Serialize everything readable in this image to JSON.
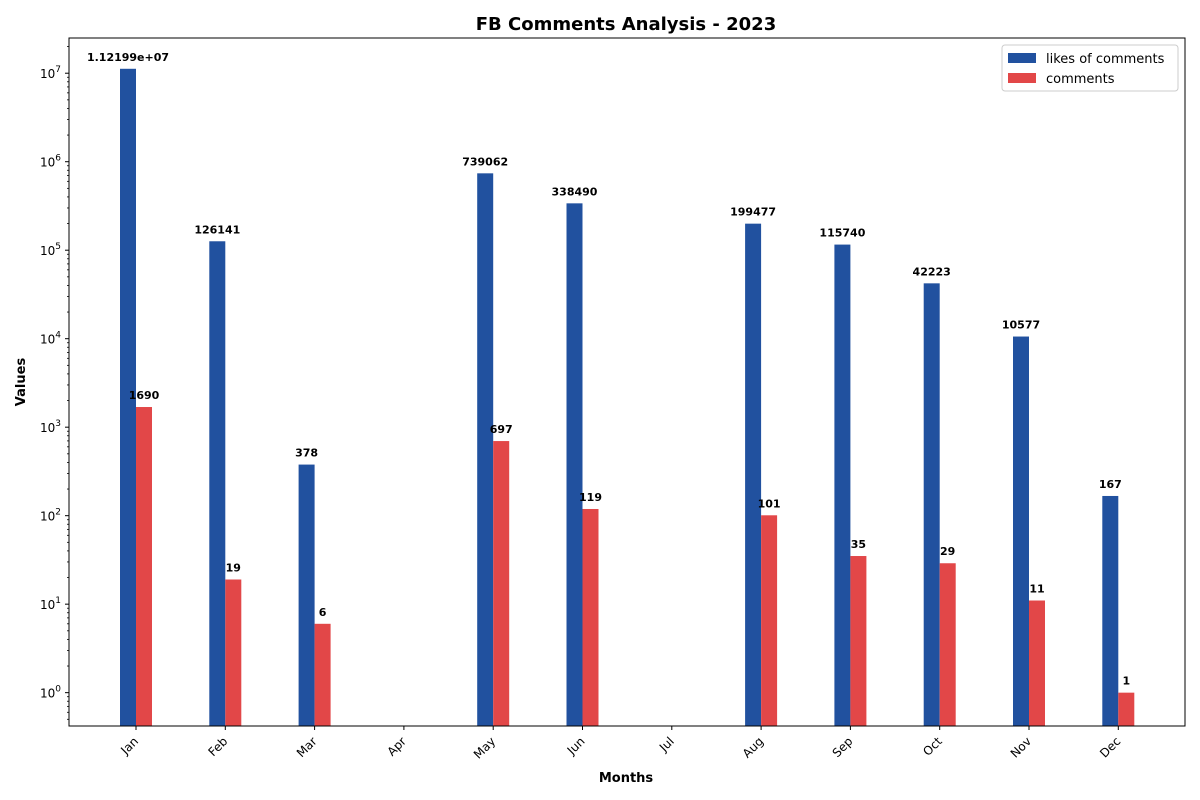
{
  "chart_data": {
    "type": "bar",
    "title": "FB Comments Analysis - 2023",
    "xlabel": "Months",
    "ylabel": "Values",
    "y_scale": "log",
    "ylim": [
      0.42,
      25000000
    ],
    "y_ticks": [
      1,
      10,
      100,
      1000,
      10000,
      100000,
      1000000,
      10000000
    ],
    "y_tick_exponents": [
      "0",
      "1",
      "2",
      "3",
      "4",
      "5",
      "6",
      "7"
    ],
    "legend_position": "top-right",
    "categories": [
      "Jan",
      "Feb",
      "Mar",
      "Apr",
      "May",
      "Jun",
      "Jul",
      "Aug",
      "Sep",
      "Oct",
      "Nov",
      "Dec"
    ],
    "series": [
      {
        "name": "likes of comments",
        "color": "#21519f",
        "values": [
          11219900,
          126141,
          378,
          null,
          739062,
          338490,
          null,
          199477,
          115740,
          42223,
          10577,
          167
        ],
        "labels": [
          "1.12199e+07",
          "126141",
          "378",
          null,
          "739062",
          "338490",
          null,
          "199477",
          "115740",
          "42223",
          "10577",
          "167"
        ]
      },
      {
        "name": "comments",
        "color": "#e24748",
        "values": [
          1690,
          19,
          6,
          null,
          697,
          119,
          null,
          101,
          35,
          29,
          11,
          1
        ],
        "labels": [
          "1690",
          "19",
          "6",
          null,
          "697",
          "119",
          null,
          "101",
          "35",
          "29",
          "11",
          "1"
        ]
      }
    ]
  }
}
